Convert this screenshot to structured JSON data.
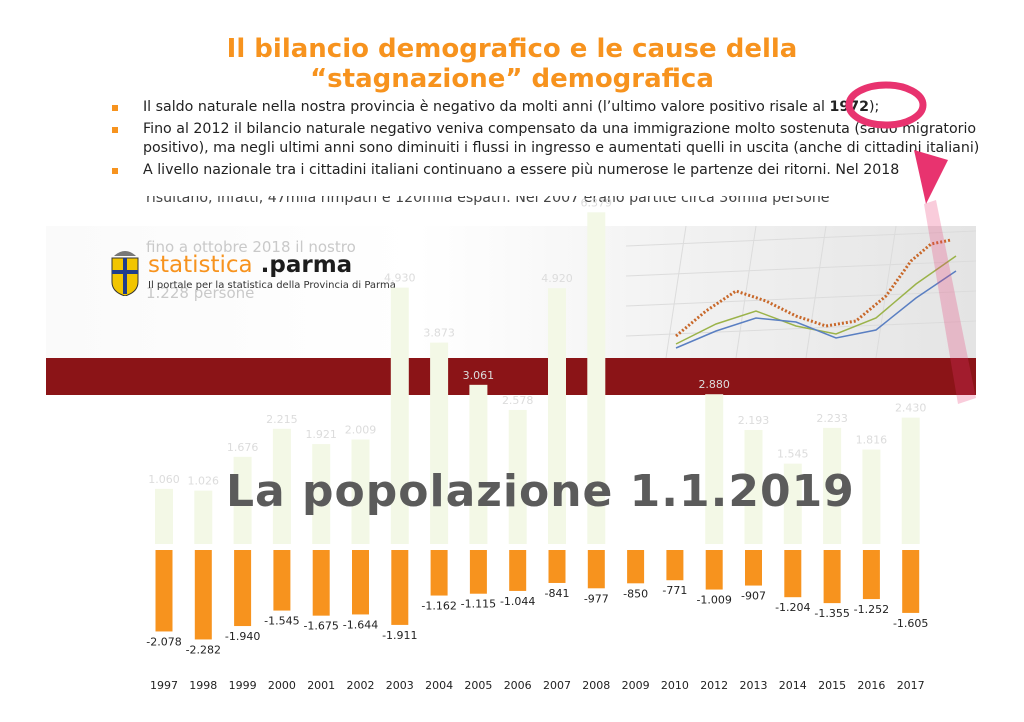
{
  "slide": {
    "title_line1": "Il bilancio demografico e le cause della",
    "title_line2": "“stagnazione” demografica",
    "bullet1_pre": "Il saldo naturale nella nostra provincia è negativo da molti anni (l’ultimo valore positivo risale al ",
    "bullet1_year": "1972",
    "bullet1_post": ");",
    "bullet2": "Fino al 2012 il bilancio naturale negativo veniva compensato da una immigrazione molto sostenuta (saldo migratorio positivo), ma negli ultimi anni sono diminuiti i flussi in ingresso e aumentati quelli in uscita (anche di cittadini italiani)",
    "bullet3": "A livello nazionale tra i cittadini italiani continuano a essere più numerose le partenze dei ritorni. Nel 2018",
    "bullet3_cut": "risultano, infatti, 47mila rimpatri e 120mila espatri. Nel 2007 erano partite circa 36mila persone"
  },
  "overlay": {
    "ghost_line1": "fino a ottobre 2018 il nostro",
    "ghost_line2": "1.228 persone",
    "logo_word_a": "statistica",
    "logo_word_b": ".parma",
    "logo_sub": "Il portale per la statistica della Provincia di Parma",
    "hero": "La popolazione 1.1.2019"
  },
  "colors": {
    "orange": "#f7931e",
    "dark_red": "#8b1417",
    "highlight": "#e8336f",
    "ghost_bar": "#f3f8e6"
  },
  "chart_data": {
    "type": "bar",
    "categories": [
      "1997",
      "1998",
      "1999",
      "2000",
      "2001",
      "2002",
      "2003",
      "2004",
      "2005",
      "2006",
      "2007",
      "2008",
      "2009",
      "2010",
      "2012",
      "2013",
      "2014",
      "2015",
      "2016",
      "2017"
    ],
    "series": [
      {
        "values": [
          -2078,
          -2282,
          -1940,
          -1545,
          -1675,
          -1644,
          -1911,
          -1162,
          -1115,
          -1044,
          -841,
          -977,
          -850,
          -771,
          -1009,
          -907,
          -1204,
          -1355,
          -1252,
          -1605
        ],
        "labels": [
          "-2.078",
          "-2.282",
          "-1.940",
          "-1.545",
          "-1.675",
          "-1.644",
          "-1.911",
          "-1.162",
          "-1.115",
          "-1.044",
          "-841",
          "-977",
          "-850",
          "-771",
          "-1.009",
          "-907",
          "-1.204",
          "-1.355",
          "-1.252",
          "-1.605"
        ]
      },
      {
        "values": [
          1060,
          1026,
          1676,
          2215,
          1921,
          2009,
          4930,
          3873,
          3061,
          2578,
          4920,
          6379,
          null,
          null,
          2880,
          2193,
          1545,
          2233,
          1816,
          2430
        ],
        "labels": [
          "1.060",
          "1.026",
          "1.676",
          "2.215",
          "1.921",
          "2.009",
          "4.930",
          "3.873",
          "3.061",
          "2.578",
          "4.920",
          "6.379",
          "",
          "",
          "2.880",
          "2.193",
          "1.545",
          "2.233",
          "1.816",
          "2.430"
        ]
      }
    ]
  }
}
